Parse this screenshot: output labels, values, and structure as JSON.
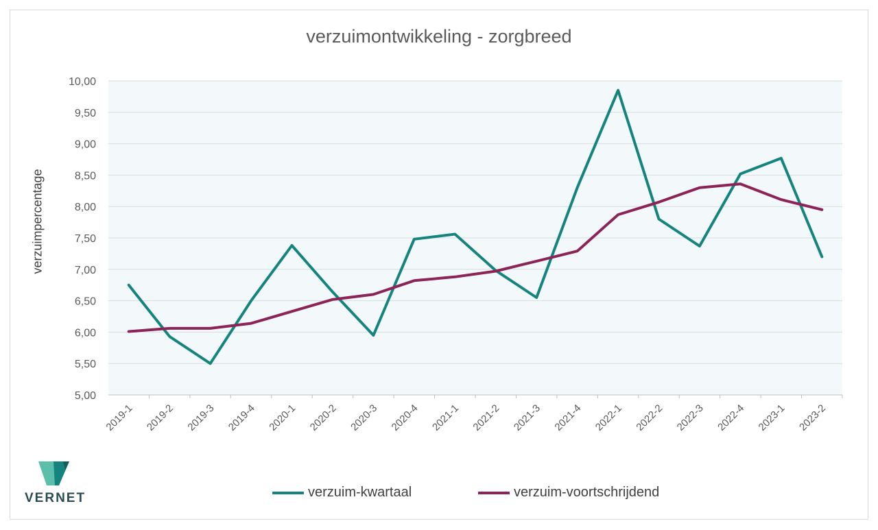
{
  "logo": {
    "text": "VERNET"
  },
  "colors": {
    "series1": "#16847e",
    "series2": "#8c2457",
    "plot_bg": "#f3f9fb",
    "grid": "#d6dde1"
  },
  "chart_data": {
    "type": "line",
    "title": "verzuimontwikkeling - zorgbreed",
    "xlabel": "",
    "ylabel": "verzuimpercentage",
    "ylim": [
      5.0,
      10.0
    ],
    "ytick_labels": [
      "5,00",
      "5,50",
      "6,00",
      "6,50",
      "7,00",
      "7,50",
      "8,00",
      "8,50",
      "9,00",
      "9,50",
      "10,00"
    ],
    "categories": [
      "2019-1",
      "2019-2",
      "2019-3",
      "2019-4",
      "2020-1",
      "2020-2",
      "2020-3",
      "2020-4",
      "2021-1",
      "2021-2",
      "2021-3",
      "2021-4",
      "2022-1",
      "2022-2",
      "2022-3",
      "2022-4",
      "2023-1",
      "2023-2"
    ],
    "series": [
      {
        "name": "verzuim-kwartaal",
        "values": [
          6.75,
          5.93,
          5.5,
          6.5,
          7.38,
          6.64,
          5.95,
          7.48,
          7.56,
          6.98,
          6.55,
          8.3,
          9.85,
          7.8,
          7.37,
          8.52,
          8.77,
          7.2
        ]
      },
      {
        "name": "verzuim-voortschrijdend",
        "values": [
          6.01,
          6.06,
          6.06,
          6.14,
          6.33,
          6.52,
          6.6,
          6.82,
          6.88,
          6.97,
          7.13,
          7.29,
          7.87,
          8.07,
          8.3,
          8.36,
          8.11,
          7.95
        ]
      }
    ],
    "grid": true,
    "legend_position": "bottom"
  }
}
